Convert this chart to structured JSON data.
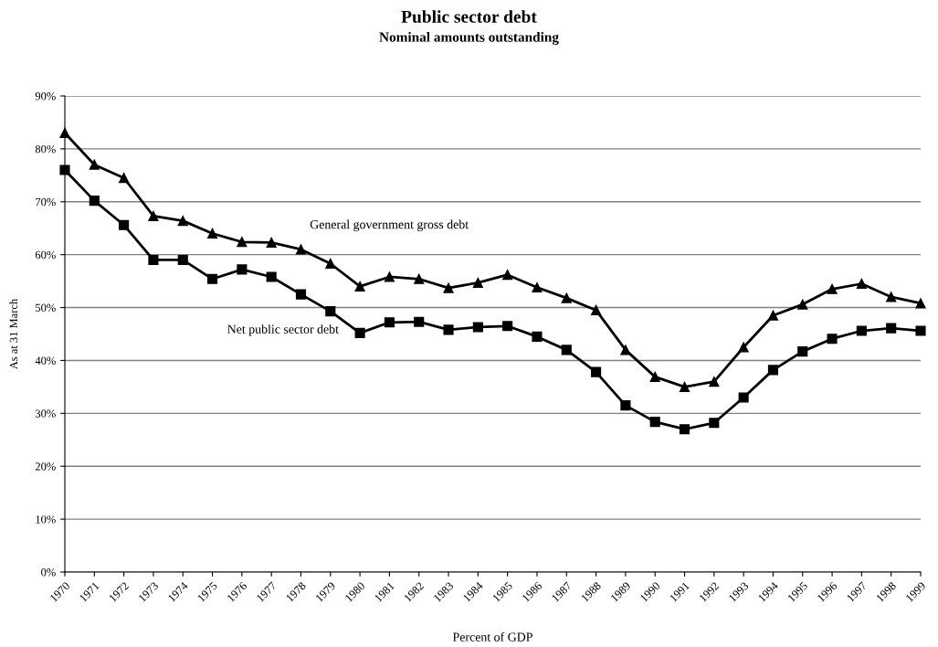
{
  "chart_data": {
    "type": "line",
    "title": "Public sector debt",
    "subtitle": "Nominal amounts outstanding",
    "xlabel": "Percent of GDP",
    "ylabel": "As at 31 March",
    "x": [
      1970,
      1971,
      1972,
      1973,
      1974,
      1975,
      1976,
      1977,
      1978,
      1979,
      1980,
      1981,
      1982,
      1983,
      1984,
      1985,
      1986,
      1987,
      1988,
      1989,
      1990,
      1991,
      1992,
      1993,
      1994,
      1995,
      1996,
      1997,
      1998,
      1999
    ],
    "series": [
      {
        "name": "General government gross debt",
        "color": "#000000",
        "marker": "triangle",
        "values": [
          83,
          77,
          74.5,
          67.3,
          66.4,
          64,
          62.4,
          62.3,
          61,
          58.3,
          54,
          55.8,
          55.4,
          53.7,
          54.7,
          56.2,
          53.8,
          51.8,
          49.5,
          42,
          36.9,
          35,
          36,
          42.5,
          48.5,
          50.6,
          53.5,
          54.5,
          52,
          50.8
        ]
      },
      {
        "name": "Net public sector debt",
        "color": "#000000",
        "marker": "square",
        "values": [
          76,
          70.2,
          65.6,
          59,
          59,
          55.4,
          57.2,
          55.8,
          52.5,
          49.3,
          45.2,
          47.2,
          47.3,
          45.8,
          46.3,
          46.5,
          44.5,
          42,
          37.8,
          31.5,
          28.4,
          27,
          28.2,
          33,
          38.2,
          41.7,
          44.1,
          45.6,
          46.1,
          45.6
        ]
      }
    ],
    "xlim": [
      1970,
      1999
    ],
    "xticks": [
      1970,
      1971,
      1972,
      1973,
      1974,
      1975,
      1976,
      1977,
      1978,
      1979,
      1980,
      1981,
      1982,
      1983,
      1984,
      1985,
      1986,
      1987,
      1988,
      1989,
      1990,
      1991,
      1992,
      1993,
      1994,
      1995,
      1996,
      1997,
      1998,
      1999
    ],
    "ylim": [
      0,
      90
    ],
    "yticks": [
      {
        "value": 0,
        "label": "0%"
      },
      {
        "value": 10,
        "label": "10%"
      },
      {
        "value": 20,
        "label": "20%"
      },
      {
        "value": 30,
        "label": "30%"
      },
      {
        "value": 40,
        "label": "40%"
      },
      {
        "value": 50,
        "label": "50%"
      },
      {
        "value": 60,
        "label": "60%"
      },
      {
        "value": 70,
        "label": "70%"
      },
      {
        "value": 80,
        "label": "80%"
      },
      {
        "value": 90,
        "label": "90%"
      }
    ],
    "grid": "y",
    "legend": false,
    "line_style": "solid"
  }
}
